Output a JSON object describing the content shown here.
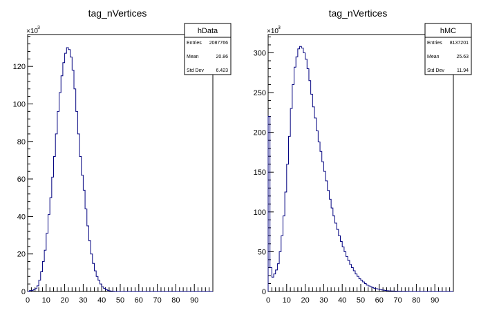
{
  "chart_data": [
    {
      "type": "bar",
      "title": "tag_nVertices",
      "xlabel": "",
      "ylabel": "",
      "y_multiplier": "×10",
      "y_exponent": "3",
      "xlim": [
        0,
        100
      ],
      "ylim": [
        0,
        137
      ],
      "xticks": [
        "0",
        "10",
        "20",
        "30",
        "40",
        "50",
        "60",
        "70",
        "80",
        "90"
      ],
      "yticks": [
        "0",
        "20",
        "40",
        "60",
        "80",
        "100",
        "120"
      ],
      "ytick_values": [
        0,
        20,
        40,
        60,
        80,
        100,
        120
      ],
      "stats": {
        "name": "hData",
        "rows": [
          {
            "label": "Entries",
            "value": "2087766"
          },
          {
            "label": "Mean",
            "value": "20.86"
          },
          {
            "label": "Std Dev",
            "value": "6.423"
          }
        ]
      },
      "bin_width": 1,
      "x_start": 0,
      "values": [
        0,
        0.5,
        0.5,
        1,
        1.5,
        3,
        6,
        10.5,
        16,
        22,
        31,
        41,
        50,
        61,
        72,
        84,
        96,
        106,
        115,
        122,
        127,
        130,
        129,
        125,
        118,
        108,
        96,
        84,
        72,
        62,
        54,
        44,
        35,
        27,
        20,
        15,
        11,
        8,
        6,
        4,
        2.5,
        1.6,
        1,
        0.6,
        0.3,
        0.2,
        0.1,
        0,
        0,
        0,
        0,
        0,
        0,
        0,
        0,
        0,
        0,
        0,
        0,
        0,
        0,
        0,
        0,
        0,
        0,
        0,
        0,
        0,
        0,
        0,
        0,
        0,
        0,
        0,
        0,
        0,
        0,
        0,
        0,
        0,
        0,
        0,
        0,
        0,
        0,
        0,
        0,
        0,
        0,
        0,
        0,
        0,
        0,
        0,
        0,
        0,
        0,
        0,
        0,
        0
      ]
    },
    {
      "type": "bar",
      "title": "tag_nVertices",
      "xlabel": "",
      "ylabel": "",
      "y_multiplier": "×10",
      "y_exponent": "3",
      "xlim": [
        0,
        100
      ],
      "ylim": [
        0,
        323
      ],
      "xticks": [
        "0",
        "10",
        "20",
        "30",
        "40",
        "50",
        "60",
        "70",
        "80",
        "90"
      ],
      "yticks": [
        "0",
        "50",
        "100",
        "150",
        "200",
        "250",
        "300"
      ],
      "ytick_values": [
        0,
        50,
        100,
        150,
        200,
        250,
        300
      ],
      "stats": {
        "name": "hMC",
        "rows": [
          {
            "label": "Entries",
            "value": "8137201"
          },
          {
            "label": "Mean",
            "value": "25.63"
          },
          {
            "label": "Std Dev",
            "value": "11.94"
          }
        ]
      },
      "bin_width": 1,
      "x_start": 0,
      "values": [
        220,
        30,
        18,
        22,
        27,
        35,
        50,
        70,
        95,
        125,
        160,
        195,
        230,
        260,
        282,
        295,
        305,
        308,
        306,
        300,
        292,
        280,
        265,
        248,
        232,
        218,
        202,
        188,
        176,
        163,
        151,
        139,
        127,
        116,
        105,
        95,
        86,
        78,
        70,
        63,
        56,
        50,
        44,
        39,
        34,
        30,
        26,
        22,
        19,
        16,
        14,
        12,
        10,
        8,
        7,
        6,
        5,
        4,
        3.5,
        3,
        2.5,
        2,
        1.6,
        1.3,
        1,
        0.8,
        0.6,
        0.5,
        0.4,
        0.3,
        0.2,
        0.2,
        0.1,
        0.1,
        0.1,
        0,
        0,
        0,
        0,
        0,
        0,
        0,
        0,
        0,
        0,
        0,
        0,
        0,
        0,
        0,
        0,
        0,
        0,
        0,
        0,
        0,
        0,
        0,
        0,
        0
      ]
    }
  ]
}
